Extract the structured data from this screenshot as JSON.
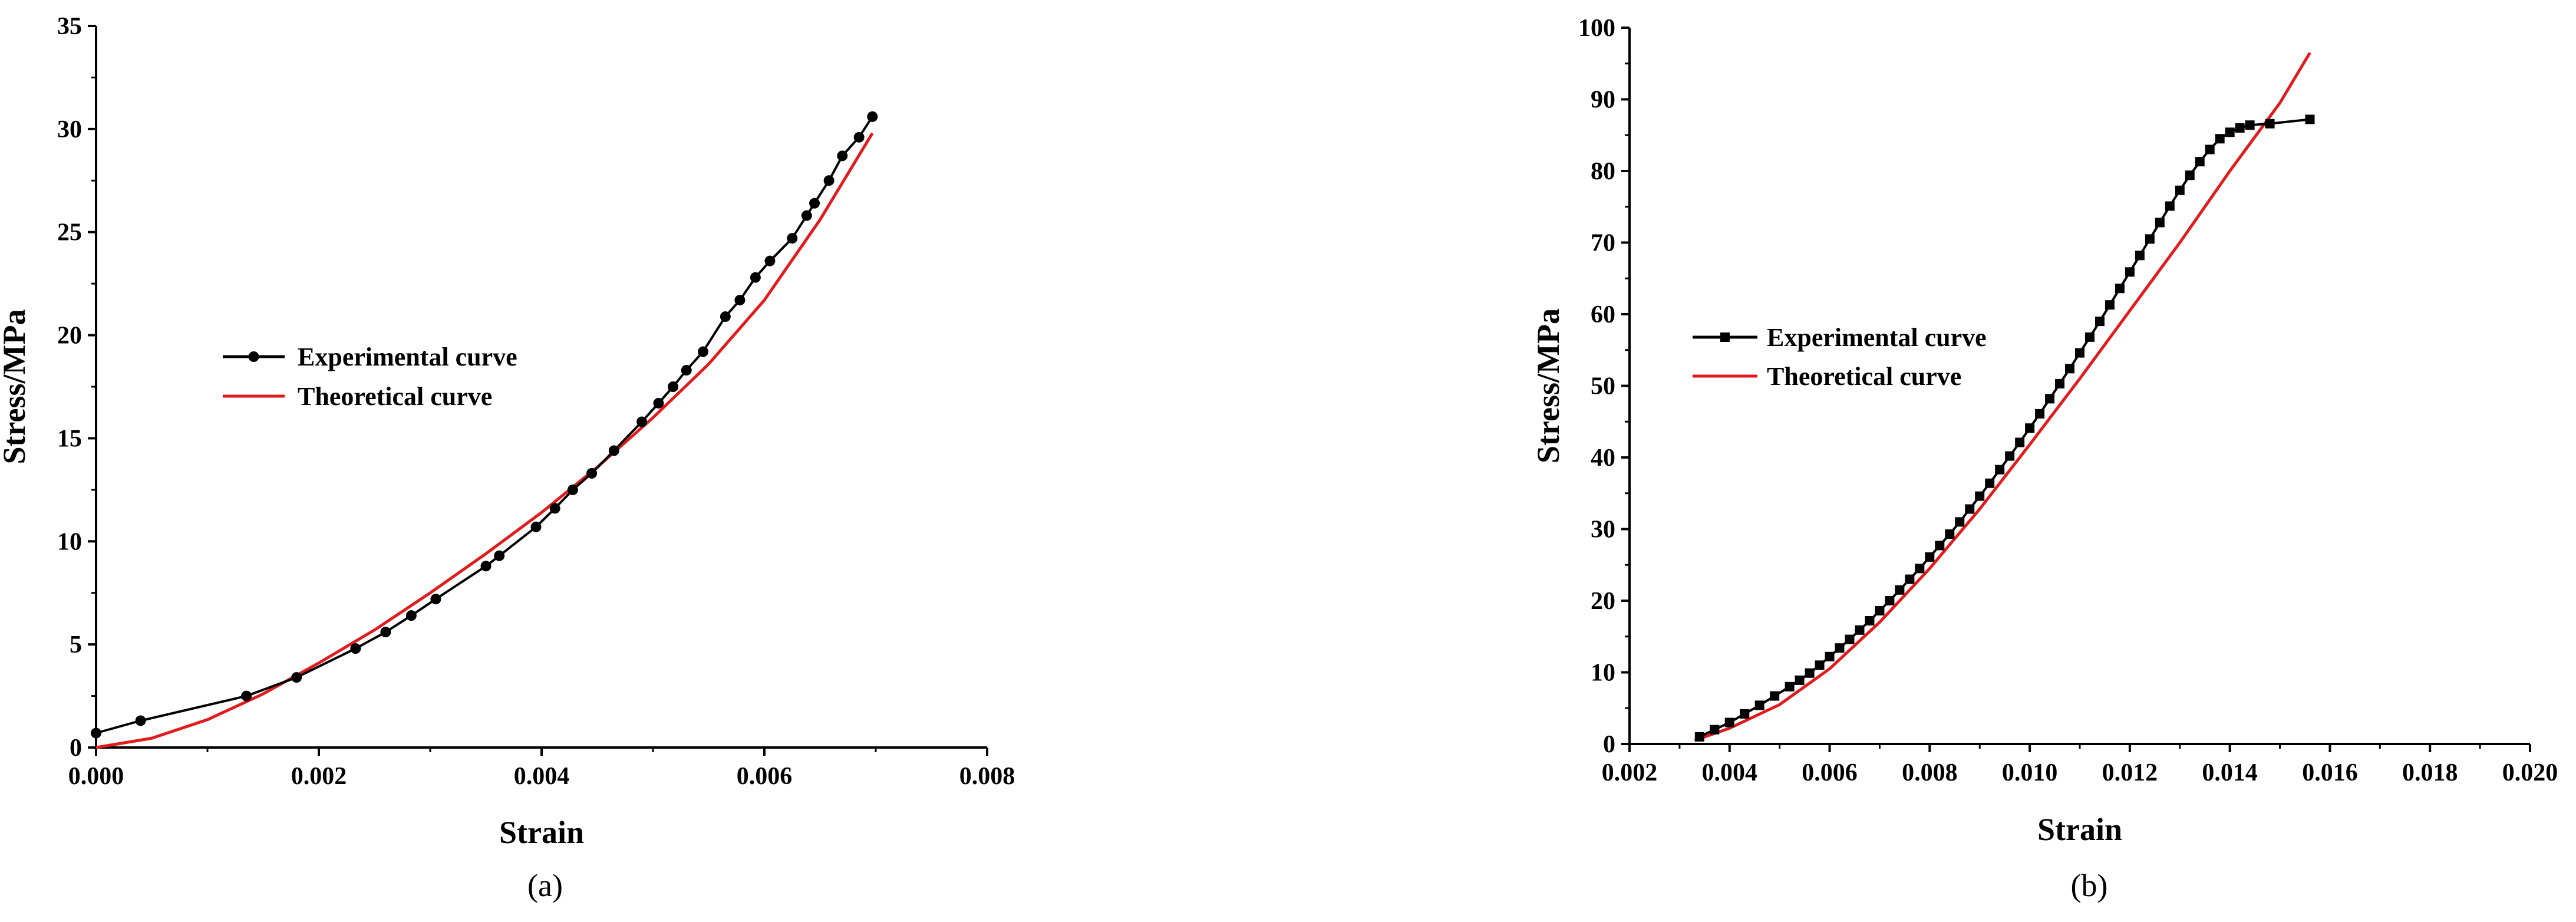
{
  "chart_data": [
    {
      "type": "line",
      "caption": "(a)",
      "xlabel": "Strain",
      "ylabel": "Stress/MPa",
      "xlim": [
        0,
        0.008
      ],
      "ylim": [
        0,
        35
      ],
      "xticks": [
        "0.000",
        "0.002",
        "0.004",
        "0.006",
        "0.008"
      ],
      "yticks": [
        "0",
        "5",
        "10",
        "15",
        "20",
        "25",
        "30",
        "35"
      ],
      "legend_position": "middle-left",
      "series": [
        {
          "name": "Experimental curve",
          "color": "#000000",
          "marker": "circle",
          "x": [
            0.0,
            0.0004,
            0.00135,
            0.0018,
            0.00233,
            0.0026,
            0.00283,
            0.00305,
            0.0035,
            0.00362,
            0.00395,
            0.00412,
            0.00428,
            0.00445,
            0.00465,
            0.0049,
            0.00505,
            0.00518,
            0.0053,
            0.00545,
            0.00565,
            0.00578,
            0.00592,
            0.00605,
            0.00625,
            0.00638,
            0.00645,
            0.00658,
            0.0067,
            0.00685,
            0.00697
          ],
          "y": [
            0.7,
            1.3,
            2.5,
            3.4,
            4.8,
            5.6,
            6.4,
            7.2,
            8.8,
            9.3,
            10.7,
            11.6,
            12.5,
            13.3,
            14.4,
            15.8,
            16.7,
            17.5,
            18.3,
            19.2,
            20.9,
            21.7,
            22.8,
            23.6,
            24.7,
            25.8,
            26.4,
            27.5,
            28.7,
            29.6,
            30.6
          ]
        },
        {
          "name": "Theoretical curve",
          "color": "#e31a1c",
          "marker": "none",
          "x": [
            0.0,
            0.0005,
            0.001,
            0.0015,
            0.002,
            0.0025,
            0.003,
            0.0035,
            0.004,
            0.0045,
            0.005,
            0.0055,
            0.006,
            0.0065,
            0.00697
          ],
          "y": [
            0.0,
            0.45,
            1.35,
            2.6,
            4.1,
            5.7,
            7.5,
            9.4,
            11.4,
            13.6,
            16.0,
            18.6,
            21.7,
            25.6,
            29.8
          ]
        }
      ]
    },
    {
      "type": "line",
      "caption": "(b)",
      "xlabel": "Strain",
      "ylabel": "Stress/MPa",
      "xlim": [
        0.002,
        0.02
      ],
      "ylim": [
        0,
        100
      ],
      "xticks": [
        "0.002",
        "0.004",
        "0.006",
        "0.008",
        "0.010",
        "0.012",
        "0.014",
        "0.016",
        "0.018",
        "0.020"
      ],
      "yticks": [
        "0",
        "10",
        "20",
        "30",
        "40",
        "50",
        "60",
        "70",
        "80",
        "90",
        "100"
      ],
      "legend_position": "upper-left",
      "series": [
        {
          "name": "Experimental curve",
          "color": "#000000",
          "marker": "square",
          "x": [
            0.0034,
            0.0037,
            0.004,
            0.0043,
            0.0046,
            0.0049,
            0.0052,
            0.0054,
            0.0056,
            0.0058,
            0.006,
            0.0062,
            0.0064,
            0.0066,
            0.0068,
            0.007,
            0.0072,
            0.0074,
            0.0076,
            0.0078,
            0.008,
            0.0082,
            0.0084,
            0.0086,
            0.0088,
            0.009,
            0.0092,
            0.0094,
            0.0096,
            0.0098,
            0.01,
            0.0102,
            0.0104,
            0.0106,
            0.0108,
            0.011,
            0.0112,
            0.0114,
            0.0116,
            0.0118,
            0.012,
            0.0122,
            0.0124,
            0.0126,
            0.0128,
            0.013,
            0.0132,
            0.0134,
            0.0136,
            0.0138,
            0.014,
            0.0142,
            0.0144,
            0.0148,
            0.0156
          ],
          "y": [
            1.0,
            2.0,
            3.0,
            4.2,
            5.4,
            6.7,
            8.0,
            8.9,
            9.9,
            11.0,
            12.2,
            13.4,
            14.6,
            15.9,
            17.2,
            18.6,
            20.0,
            21.5,
            23.0,
            24.5,
            26.1,
            27.7,
            29.3,
            31.0,
            32.8,
            34.6,
            36.4,
            38.3,
            40.2,
            42.1,
            44.1,
            46.1,
            48.2,
            50.3,
            52.4,
            54.6,
            56.8,
            59.0,
            61.3,
            63.6,
            65.9,
            68.2,
            70.5,
            72.8,
            75.1,
            77.3,
            79.4,
            81.3,
            83.0,
            84.5,
            85.4,
            86.0,
            86.4,
            86.6,
            87.2
          ]
        },
        {
          "name": "Theoretical curve",
          "color": "#e31a1c",
          "marker": "none",
          "x": [
            0.0033,
            0.004,
            0.005,
            0.006,
            0.007,
            0.008,
            0.009,
            0.01,
            0.011,
            0.012,
            0.013,
            0.014,
            0.015,
            0.0156
          ],
          "y": [
            0.5,
            2.2,
            5.5,
            10.5,
            17.0,
            24.5,
            32.8,
            41.8,
            51.0,
            60.5,
            70.0,
            80.0,
            89.5,
            96.5
          ]
        }
      ]
    }
  ]
}
